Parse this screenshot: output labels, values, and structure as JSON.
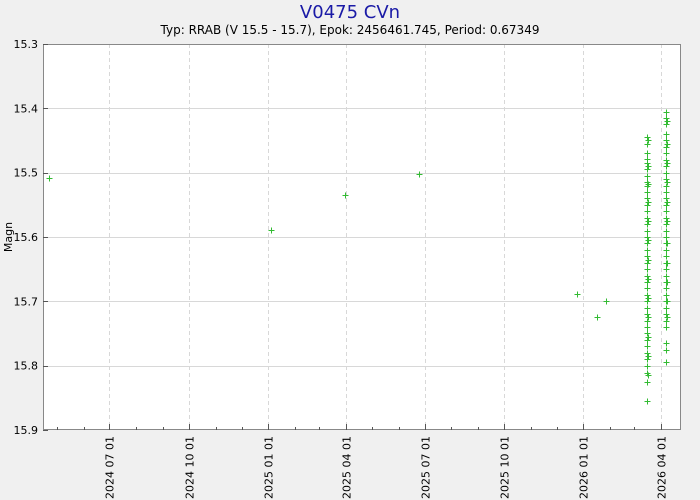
{
  "chart_data": {
    "type": "scatter",
    "title": "V0475 CVn",
    "subtitle": "Typ: RRAB (V 15.5 - 15.7), Epok: 2456461.745, Period: 0.67349",
    "xlabel": "",
    "ylabel": "Magn",
    "y_inverted": true,
    "ylim": [
      15.3,
      15.9
    ],
    "y_ticks": [
      15.3,
      15.4,
      15.5,
      15.6,
      15.7,
      15.8,
      15.9
    ],
    "y_tick_labels": [
      "15.3",
      "15.4",
      "15.5",
      "15.6",
      "15.7",
      "15.8",
      "15.9"
    ],
    "xlim": [
      "2024-04-15",
      "2026-04-24"
    ],
    "x_ticks": [
      "2024-07-01",
      "2024-10-01",
      "2025-01-01",
      "2025-04-01",
      "2025-07-01",
      "2025-10-01",
      "2026-01-01",
      "2026-04-01"
    ],
    "x_tick_labels": [
      "2024 07 01",
      "2024 10 01",
      "2025 01 01",
      "2025 04 01",
      "2025 07 01",
      "2025 10 01",
      "2026 01 01",
      "2026 04 01"
    ],
    "grid": true,
    "marker": "+",
    "colors": {
      "points": "#33bb33",
      "title": "#1a1aa6",
      "grid": "#d8d8d8",
      "background": "#f0f0f0",
      "plot_background": "#ffffff"
    },
    "series": [
      {
        "points": [
          [
            "2024-04-22",
            15.508
          ],
          [
            "2025-01-04",
            15.589
          ],
          [
            "2025-03-31",
            15.534
          ],
          [
            "2025-06-24",
            15.502
          ],
          [
            "2025-12-24",
            15.689
          ],
          [
            "2026-01-17",
            15.725
          ],
          [
            "2026-01-27",
            15.7
          ],
          [
            "2026-03-16",
            15.445
          ],
          [
            "2026-03-16",
            15.455
          ],
          [
            "2026-03-16",
            15.47
          ],
          [
            "2026-03-16",
            15.478
          ],
          [
            "2026-03-16",
            15.485
          ],
          [
            "2026-03-16",
            15.495
          ],
          [
            "2026-03-16",
            15.505
          ],
          [
            "2026-03-16",
            15.515
          ],
          [
            "2026-03-16",
            15.52
          ],
          [
            "2026-03-16",
            15.53
          ],
          [
            "2026-03-16",
            15.54
          ],
          [
            "2026-03-16",
            15.55
          ],
          [
            "2026-03-16",
            15.56
          ],
          [
            "2026-03-16",
            15.57
          ],
          [
            "2026-03-16",
            15.58
          ],
          [
            "2026-03-16",
            15.59
          ],
          [
            "2026-03-16",
            15.6
          ],
          [
            "2026-03-16",
            15.61
          ],
          [
            "2026-03-16",
            15.62
          ],
          [
            "2026-03-16",
            15.63
          ],
          [
            "2026-03-16",
            15.64
          ],
          [
            "2026-03-16",
            15.65
          ],
          [
            "2026-03-16",
            15.66
          ],
          [
            "2026-03-16",
            15.67
          ],
          [
            "2026-03-16",
            15.68
          ],
          [
            "2026-03-16",
            15.69
          ],
          [
            "2026-03-16",
            15.7
          ],
          [
            "2026-03-16",
            15.71
          ],
          [
            "2026-03-16",
            15.72
          ],
          [
            "2026-03-16",
            15.73
          ],
          [
            "2026-03-16",
            15.74
          ],
          [
            "2026-03-16",
            15.75
          ],
          [
            "2026-03-16",
            15.76
          ],
          [
            "2026-03-16",
            15.77
          ],
          [
            "2026-03-16",
            15.78
          ],
          [
            "2026-03-16",
            15.79
          ],
          [
            "2026-03-16",
            15.8
          ],
          [
            "2026-03-16",
            15.812
          ],
          [
            "2026-03-16",
            15.825
          ],
          [
            "2026-03-16",
            15.855
          ],
          [
            "2026-03-17",
            15.45
          ],
          [
            "2026-03-17",
            15.49
          ],
          [
            "2026-03-17",
            15.518
          ],
          [
            "2026-03-17",
            15.545
          ],
          [
            "2026-03-17",
            15.575
          ],
          [
            "2026-03-17",
            15.605
          ],
          [
            "2026-03-17",
            15.635
          ],
          [
            "2026-03-17",
            15.665
          ],
          [
            "2026-03-17",
            15.695
          ],
          [
            "2026-03-17",
            15.725
          ],
          [
            "2026-03-17",
            15.755
          ],
          [
            "2026-03-17",
            15.785
          ],
          [
            "2026-03-17",
            15.815
          ],
          [
            "2026-04-07",
            15.405
          ],
          [
            "2026-04-07",
            15.415
          ],
          [
            "2026-04-07",
            15.425
          ],
          [
            "2026-04-07",
            15.44
          ],
          [
            "2026-04-07",
            15.45
          ],
          [
            "2026-04-07",
            15.46
          ],
          [
            "2026-04-07",
            15.47
          ],
          [
            "2026-04-07",
            15.48
          ],
          [
            "2026-04-07",
            15.49
          ],
          [
            "2026-04-07",
            15.5
          ],
          [
            "2026-04-07",
            15.51
          ],
          [
            "2026-04-07",
            15.52
          ],
          [
            "2026-04-07",
            15.53
          ],
          [
            "2026-04-07",
            15.54
          ],
          [
            "2026-04-07",
            15.55
          ],
          [
            "2026-04-07",
            15.56
          ],
          [
            "2026-04-07",
            15.57
          ],
          [
            "2026-04-07",
            15.58
          ],
          [
            "2026-04-07",
            15.59
          ],
          [
            "2026-04-07",
            15.6
          ],
          [
            "2026-04-07",
            15.61
          ],
          [
            "2026-04-07",
            15.62
          ],
          [
            "2026-04-07",
            15.63
          ],
          [
            "2026-04-07",
            15.64
          ],
          [
            "2026-04-07",
            15.65
          ],
          [
            "2026-04-07",
            15.66
          ],
          [
            "2026-04-07",
            15.67
          ],
          [
            "2026-04-07",
            15.68
          ],
          [
            "2026-04-07",
            15.69
          ],
          [
            "2026-04-07",
            15.7
          ],
          [
            "2026-04-07",
            15.71
          ],
          [
            "2026-04-07",
            15.72
          ],
          [
            "2026-04-07",
            15.73
          ],
          [
            "2026-04-07",
            15.74
          ],
          [
            "2026-04-07",
            15.765
          ],
          [
            "2026-04-07",
            15.775
          ],
          [
            "2026-04-07",
            15.795
          ],
          [
            "2026-04-08",
            15.42
          ],
          [
            "2026-04-08",
            15.455
          ],
          [
            "2026-04-08",
            15.485
          ],
          [
            "2026-04-08",
            15.515
          ],
          [
            "2026-04-08",
            15.545
          ],
          [
            "2026-04-08",
            15.575
          ],
          [
            "2026-04-08",
            15.61
          ],
          [
            "2026-04-08",
            15.64
          ],
          [
            "2026-04-08",
            15.67
          ],
          [
            "2026-04-08",
            15.7
          ],
          [
            "2026-04-08",
            15.725
          ]
        ]
      }
    ]
  }
}
